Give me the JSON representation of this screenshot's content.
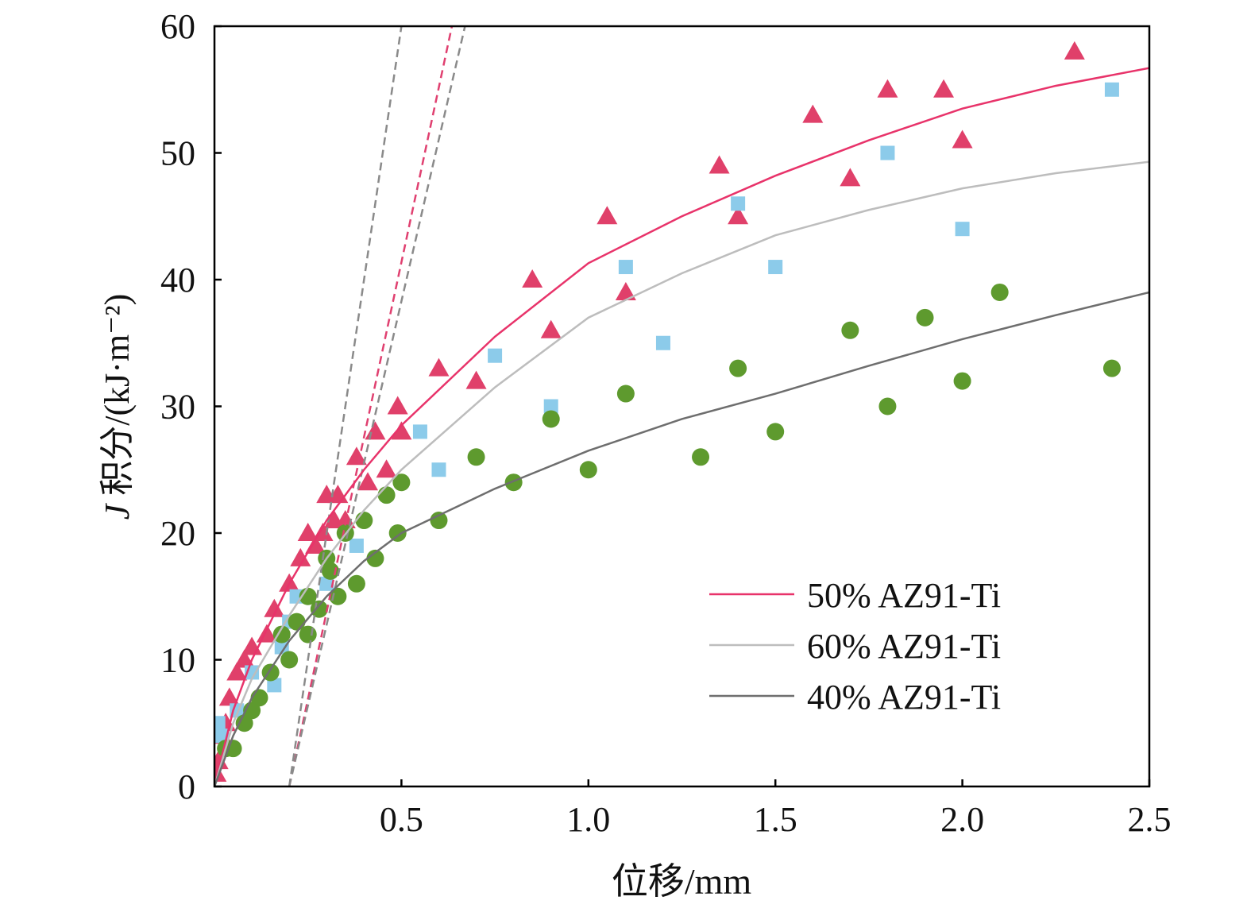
{
  "chart_data": {
    "type": "scatter",
    "xlabel": "位移/mm",
    "ylabel_italic": "J",
    "ylabel": " 积分/(kJ·m⁻²)",
    "xlim": [
      0,
      2.5
    ],
    "ylim": [
      0,
      60
    ],
    "xticks": [
      "0.5",
      "1.0",
      "1.5",
      "2.0",
      "2.5"
    ],
    "xtick_values": [
      0.5,
      1.0,
      1.5,
      2.0,
      2.5
    ],
    "yticks": [
      "0",
      "10",
      "20",
      "30",
      "40",
      "50",
      "60"
    ],
    "ytick_values": [
      0,
      10,
      20,
      30,
      40,
      50,
      60
    ],
    "grid": false,
    "legend_placement": "bottom-right",
    "series": [
      {
        "name": "50% AZ91-Ti",
        "marker": "triangle",
        "marker_color": "#e0406a",
        "line_color": "#e8336a",
        "points": [
          [
            2.3,
            58
          ],
          [
            1.8,
            55
          ],
          [
            1.95,
            55
          ],
          [
            1.6,
            53
          ],
          [
            2.0,
            51
          ],
          [
            1.35,
            49
          ],
          [
            1.7,
            48
          ],
          [
            1.05,
            45
          ],
          [
            1.4,
            45
          ],
          [
            0.85,
            40
          ],
          [
            1.1,
            39
          ],
          [
            0.9,
            36
          ],
          [
            0.6,
            33
          ],
          [
            0.7,
            32
          ],
          [
            0.49,
            30
          ],
          [
            0.5,
            28
          ],
          [
            0.43,
            28
          ],
          [
            0.38,
            26
          ],
          [
            0.46,
            25
          ],
          [
            0.41,
            24
          ],
          [
            0.3,
            23
          ],
          [
            0.33,
            23
          ],
          [
            0.35,
            21
          ],
          [
            0.32,
            21
          ],
          [
            0.25,
            20
          ],
          [
            0.29,
            20
          ],
          [
            0.27,
            19
          ],
          [
            0.23,
            18
          ],
          [
            0.2,
            16
          ],
          [
            0.16,
            14
          ],
          [
            0.14,
            12
          ],
          [
            0.1,
            11
          ],
          [
            0.08,
            10
          ],
          [
            0.06,
            9
          ],
          [
            0.04,
            7
          ],
          [
            0.03,
            5
          ],
          [
            0.02,
            4
          ],
          [
            0.01,
            2
          ],
          [
            0.005,
            1
          ]
        ],
        "fit": [
          [
            0,
            0
          ],
          [
            0.05,
            6
          ],
          [
            0.1,
            10
          ],
          [
            0.2,
            16
          ],
          [
            0.3,
            21
          ],
          [
            0.4,
            25
          ],
          [
            0.5,
            28.5
          ],
          [
            0.75,
            35.5
          ],
          [
            1.0,
            41.3
          ],
          [
            1.25,
            45
          ],
          [
            1.5,
            48.2
          ],
          [
            1.75,
            51
          ],
          [
            2.0,
            53.5
          ],
          [
            2.25,
            55.3
          ],
          [
            2.5,
            56.7
          ]
        ],
        "blunting_line": [
          [
            0.2,
            0
          ],
          [
            0.635,
            60
          ]
        ]
      },
      {
        "name": "60% AZ91-Ti",
        "marker": "square",
        "marker_color": "#8ccbea",
        "line_color": "#bdbdbd",
        "points": [
          [
            2.4,
            55
          ],
          [
            1.8,
            50
          ],
          [
            1.4,
            46
          ],
          [
            2.0,
            44
          ],
          [
            1.1,
            41
          ],
          [
            1.5,
            41
          ],
          [
            1.2,
            35
          ],
          [
            0.75,
            34
          ],
          [
            0.9,
            30
          ],
          [
            0.55,
            28
          ],
          [
            0.6,
            25
          ],
          [
            0.38,
            19
          ],
          [
            0.3,
            16
          ],
          [
            0.22,
            15
          ],
          [
            0.2,
            13
          ],
          [
            0.18,
            11
          ],
          [
            0.16,
            8
          ],
          [
            0.1,
            9
          ],
          [
            0.06,
            6
          ],
          [
            0.02,
            4
          ],
          [
            0.01,
            5
          ]
        ],
        "fit": [
          [
            0,
            0
          ],
          [
            0.05,
            5
          ],
          [
            0.1,
            8.5
          ],
          [
            0.2,
            13.5
          ],
          [
            0.3,
            18
          ],
          [
            0.4,
            21.8
          ],
          [
            0.5,
            25
          ],
          [
            0.75,
            31.5
          ],
          [
            1.0,
            37
          ],
          [
            1.25,
            40.5
          ],
          [
            1.5,
            43.5
          ],
          [
            1.75,
            45.5
          ],
          [
            2.0,
            47.2
          ],
          [
            2.25,
            48.4
          ],
          [
            2.5,
            49.3
          ]
        ],
        "blunting_line": [
          [
            0.2,
            0
          ],
          [
            0.67,
            60
          ]
        ]
      },
      {
        "name": "40% AZ91-Ti",
        "marker": "circle",
        "marker_color": "#5e9a2e",
        "line_color": "#6e6e6e",
        "points": [
          [
            2.1,
            39
          ],
          [
            1.9,
            37
          ],
          [
            1.7,
            36
          ],
          [
            1.4,
            33
          ],
          [
            2.4,
            33
          ],
          [
            2.0,
            32
          ],
          [
            1.1,
            31
          ],
          [
            1.8,
            30
          ],
          [
            0.9,
            29
          ],
          [
            1.5,
            28
          ],
          [
            0.7,
            26
          ],
          [
            1.3,
            26
          ],
          [
            1.0,
            25
          ],
          [
            0.8,
            24
          ],
          [
            0.5,
            24
          ],
          [
            0.46,
            23
          ],
          [
            0.4,
            21
          ],
          [
            0.6,
            21
          ],
          [
            0.49,
            20
          ],
          [
            0.35,
            20
          ],
          [
            0.43,
            18
          ],
          [
            0.3,
            18
          ],
          [
            0.31,
            17
          ],
          [
            0.38,
            16
          ],
          [
            0.33,
            15
          ],
          [
            0.28,
            14
          ],
          [
            0.25,
            15
          ],
          [
            0.25,
            12
          ],
          [
            0.22,
            13
          ],
          [
            0.2,
            10
          ],
          [
            0.18,
            12
          ],
          [
            0.15,
            9
          ],
          [
            0.12,
            7
          ],
          [
            0.1,
            6
          ],
          [
            0.08,
            5
          ],
          [
            0.05,
            3
          ],
          [
            0.03,
            3
          ]
        ],
        "fit": [
          [
            0,
            0
          ],
          [
            0.05,
            4
          ],
          [
            0.1,
            7
          ],
          [
            0.2,
            11.5
          ],
          [
            0.3,
            15
          ],
          [
            0.4,
            17.8
          ],
          [
            0.5,
            20
          ],
          [
            0.75,
            23.5
          ],
          [
            1.0,
            26.5
          ],
          [
            1.25,
            29
          ],
          [
            1.5,
            31
          ],
          [
            1.75,
            33.2
          ],
          [
            2.0,
            35.3
          ],
          [
            2.25,
            37.2
          ],
          [
            2.5,
            39
          ]
        ],
        "blunting_line": [
          [
            0.2,
            0
          ],
          [
            0.5,
            60
          ]
        ]
      }
    ]
  }
}
